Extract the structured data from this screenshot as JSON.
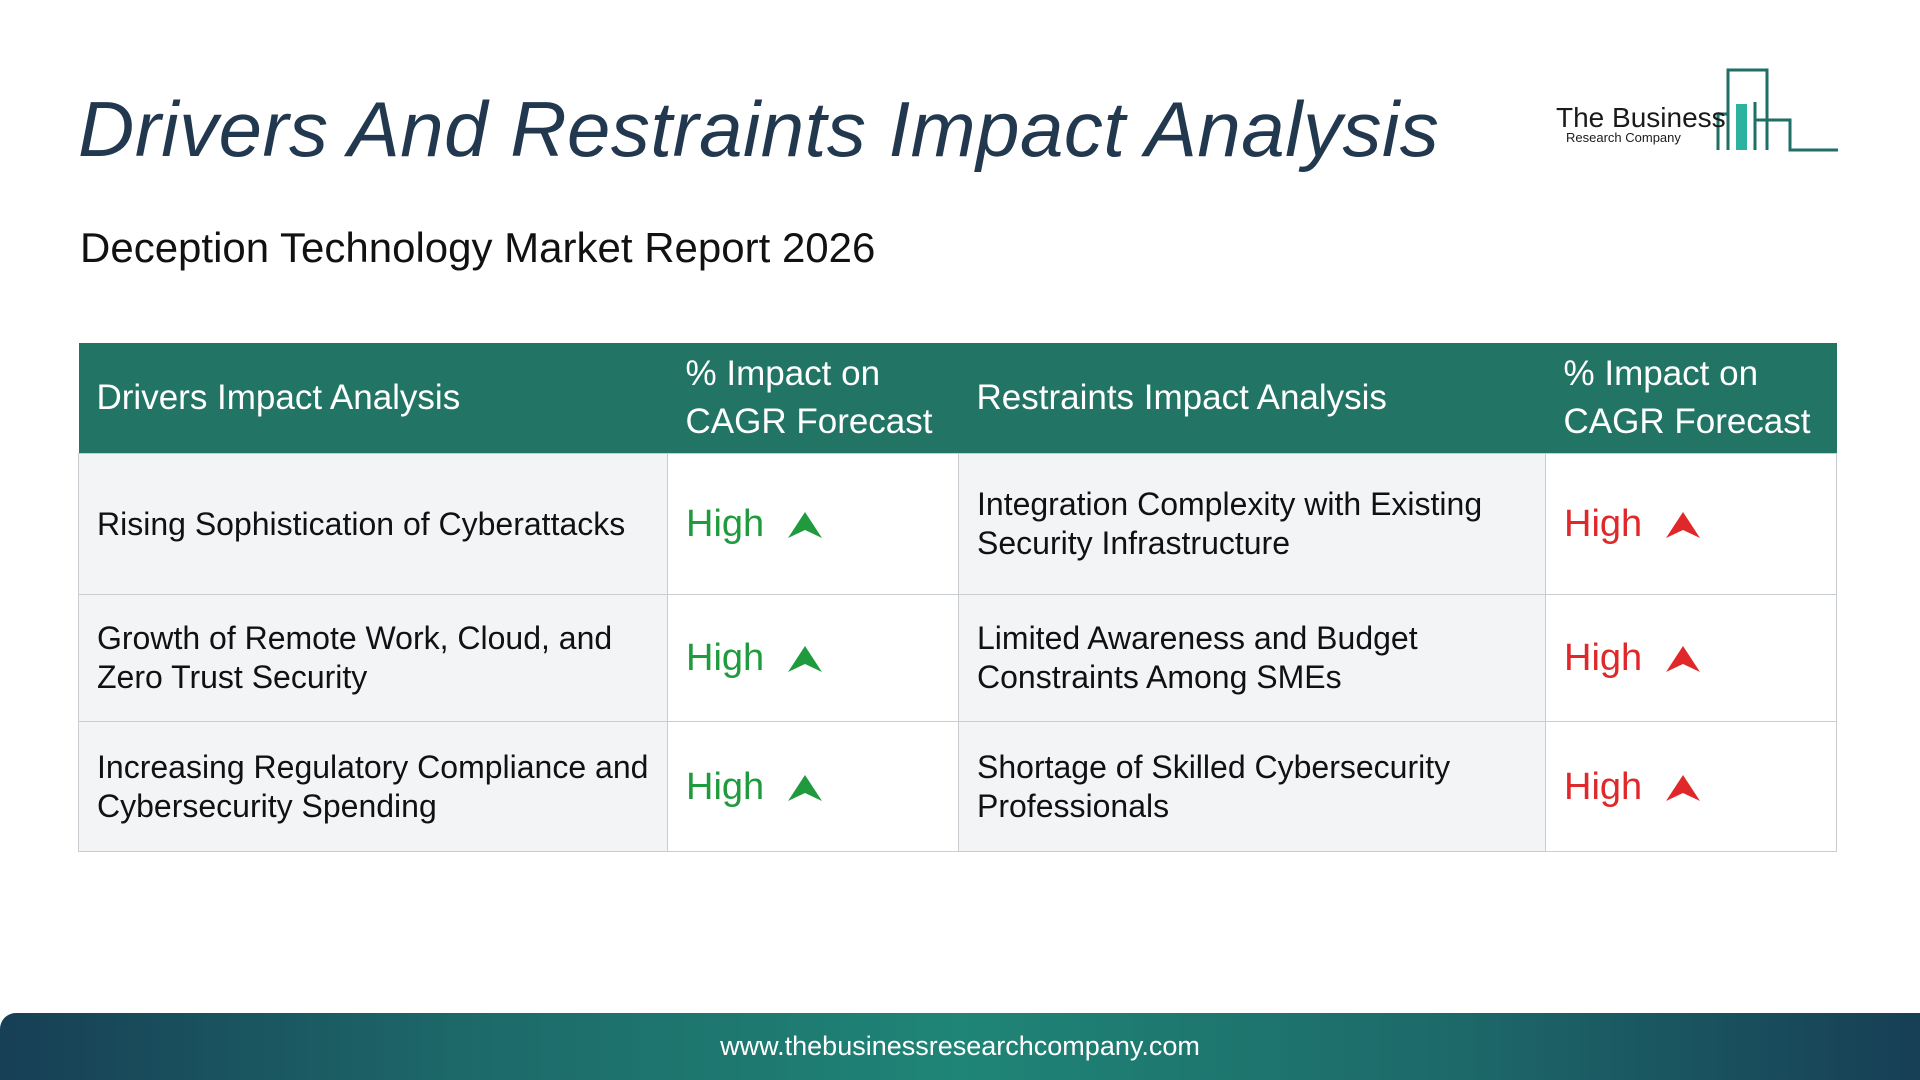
{
  "header": {
    "title": "Drivers And Restraints Impact Analysis",
    "subtitle": "Deception Technology Market Report 2026"
  },
  "logo": {
    "name": "The Business",
    "sub": "Research Company",
    "icon": "bar-chart-building-icon"
  },
  "table": {
    "headers": {
      "drivers": "Drivers Impact Analysis",
      "drivers_impact": "% Impact on CAGR Forecast",
      "restraints": "Restraints Impact Analysis",
      "restraints_impact": "% Impact on CAGR Forecast"
    },
    "rows": [
      {
        "driver": "Rising Sophistication of Cyberattacks",
        "driver_impact": "High",
        "restraint": "Integration Complexity with Existing Security Infrastructure",
        "restraint_impact": "High"
      },
      {
        "driver": "Growth of Remote Work, Cloud, and Zero Trust Security",
        "driver_impact": "High",
        "restraint": "Limited Awareness and Budget Constraints Among SMEs",
        "restraint_impact": "High"
      },
      {
        "driver": "Increasing Regulatory Compliance and Cybersecurity Spending",
        "driver_impact": "High",
        "restraint": "Shortage of Skilled Cybersecurity Professionals",
        "restraint_impact": "High"
      }
    ]
  },
  "footer": {
    "url": "www.thebusinessresearchcompany.com"
  },
  "colors": {
    "title": "#22384f",
    "header_bg": "#227565",
    "driver_positive": "#1f9a3c",
    "restraint_negative": "#e0282a",
    "footer_gradient": [
      "#173f55",
      "#1f8576",
      "#173f55"
    ]
  }
}
